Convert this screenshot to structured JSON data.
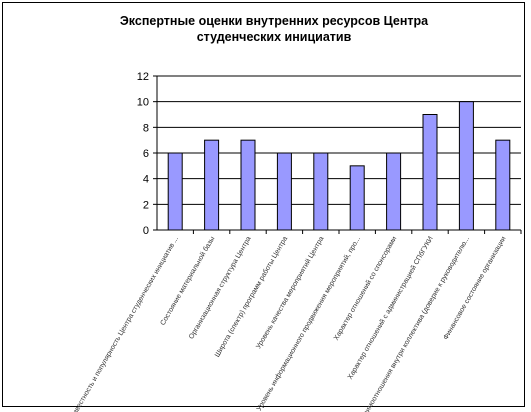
{
  "chart_data": {
    "type": "bar",
    "title_lines": [
      "Экспертные оценки внутренних ресурсов Центра",
      "студенческих инициатив"
    ],
    "categories": [
      "Известность и популярность Центра студенческих инициатив ...",
      "Состояние материальной базы",
      "Организационная структура Центра",
      "Широта (спектр) программ работы Центра",
      "Уровень качества мероприятий Центра",
      "Уровень информационного продвижения мероприятий, про...",
      "Характер отношений со спонсорами",
      "Характер отношений с администрацией СПбГУКИ",
      "Взаимоотношения внутри коллектива (доверие к руководителю...",
      "Финансовое состояние организации"
    ],
    "values": [
      6,
      7,
      7,
      6,
      6,
      5,
      6,
      9,
      10,
      7
    ],
    "ylim": [
      0,
      12
    ],
    "yticks": [
      0,
      2,
      4,
      6,
      8,
      10,
      12
    ],
    "grid": true,
    "legend": "none",
    "bar_color": "#9999ff",
    "bar_outline": "#000000"
  }
}
